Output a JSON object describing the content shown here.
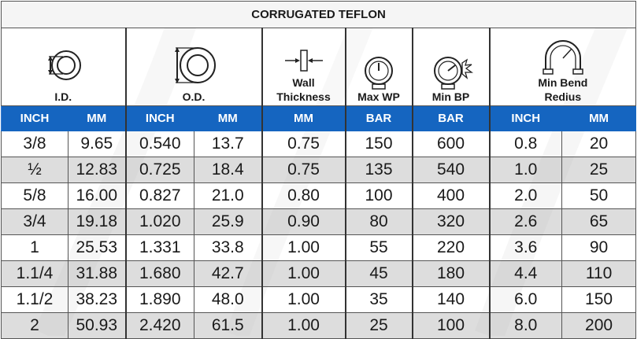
{
  "title": "CORRUGATED TEFLON",
  "icon_labels": {
    "id": "I.D.",
    "od": "O.D.",
    "wall_line1": "Wall",
    "wall_line2": "Thickness",
    "max_wp": "Max WP",
    "min_bp": "Min BP",
    "bend_line1": "Min Bend",
    "bend_line2": "Redius"
  },
  "icons": [
    "hose-id-icon",
    "hose-od-icon",
    "wall-thickness-icon",
    "pressure-gauge-icon",
    "burst-gauge-icon",
    "bend-radius-icon"
  ],
  "units": [
    "INCH",
    "MM",
    "INCH",
    "MM",
    "MM",
    "BAR",
    "BAR",
    "INCH",
    "MM"
  ],
  "colors": {
    "header_blue": "#1565c0",
    "row_shade": "#d2d2d2"
  },
  "rows": [
    [
      "3/8",
      "9.65",
      "0.540",
      "13.7",
      "0.75",
      "150",
      "600",
      "0.8",
      "20"
    ],
    [
      "½",
      "12.83",
      "0.725",
      "18.4",
      "0.75",
      "135",
      "540",
      "1.0",
      "25"
    ],
    [
      "5/8",
      "16.00",
      "0.827",
      "21.0",
      "0.80",
      "100",
      "400",
      "2.0",
      "50"
    ],
    [
      "3/4",
      "19.18",
      "1.020",
      "25.9",
      "0.90",
      "80",
      "320",
      "2.6",
      "65"
    ],
    [
      "1",
      "25.53",
      "1.331",
      "33.8",
      "1.00",
      "55",
      "220",
      "3.6",
      "90"
    ],
    [
      "1.1/4",
      "31.88",
      "1.680",
      "42.7",
      "1.00",
      "45",
      "180",
      "4.4",
      "110"
    ],
    [
      "1.1/2",
      "38.23",
      "1.890",
      "48.0",
      "1.00",
      "35",
      "140",
      "6.0",
      "150"
    ],
    [
      "2",
      "50.93",
      "2.420",
      "61.5",
      "1.00",
      "25",
      "100",
      "8.0",
      "200"
    ]
  ]
}
